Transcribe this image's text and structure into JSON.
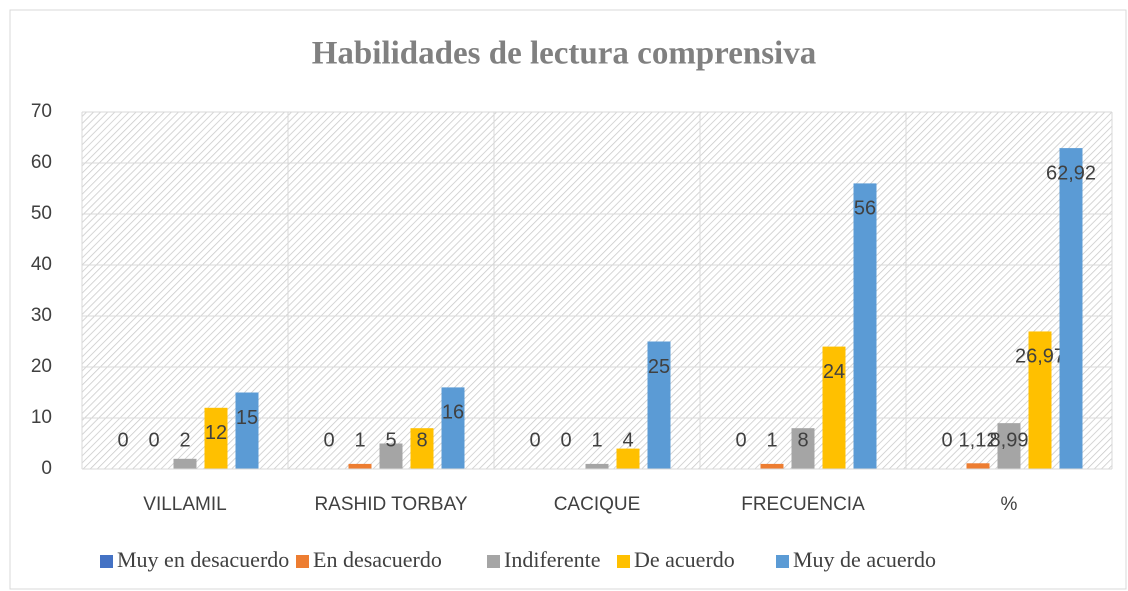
{
  "chart_data": {
    "type": "bar",
    "title": "Habilidades de lectura comprensiva",
    "categories": [
      "VILLAMIL",
      "RASHID TORBAY",
      "CACIQUE",
      "FRECUENCIA",
      "%"
    ],
    "series": [
      {
        "name": "Muy en desacuerdo",
        "color": "#4472c4",
        "values": [
          0,
          0,
          0,
          0,
          0
        ]
      },
      {
        "name": "En desacuerdo",
        "color": "#ed7d31",
        "values": [
          0,
          1,
          0,
          1,
          1.12
        ],
        "value_labels": [
          "0",
          "1",
          "0",
          "1",
          "1,12"
        ]
      },
      {
        "name": "Indiferente",
        "color": "#a5a5a5",
        "values": [
          2,
          5,
          1,
          8,
          8.99
        ],
        "value_labels": [
          "2",
          "5",
          "1",
          "8",
          "8,99"
        ]
      },
      {
        "name": "De acuerdo",
        "color": "#ffc000",
        "values": [
          12,
          8,
          4,
          24,
          26.97
        ],
        "value_labels": [
          "12",
          "8",
          "4",
          "24",
          "26,97"
        ]
      },
      {
        "name": "Muy de acuerdo",
        "color": "#5b9bd5",
        "values": [
          15,
          16,
          25,
          56,
          62.92
        ],
        "value_labels": [
          "15",
          "16",
          "25",
          "56",
          "62,92"
        ]
      }
    ],
    "ylim": [
      0,
      70
    ],
    "yticks": [
      0,
      10,
      20,
      30,
      40,
      50,
      60,
      70
    ],
    "grid": true,
    "legend": "bottom"
  }
}
